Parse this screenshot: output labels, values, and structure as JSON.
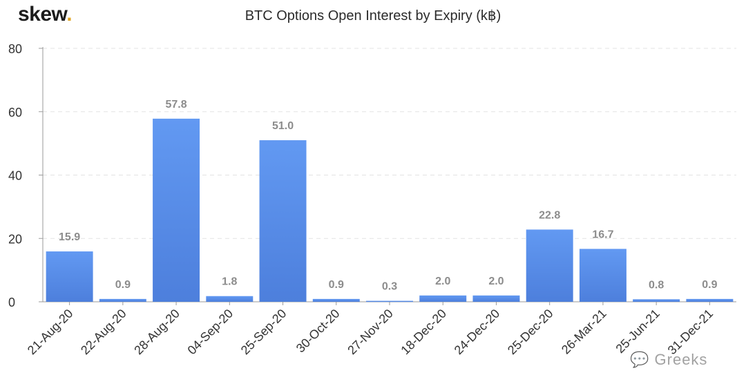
{
  "logo": {
    "text": "skew",
    "dot": "."
  },
  "watermark": "Greeks",
  "chart_data": {
    "type": "bar",
    "title": "BTC Options Open Interest by Expiry (k฿)",
    "xlabel": "",
    "ylabel": "",
    "categories": [
      "21-Aug-20",
      "22-Aug-20",
      "28-Aug-20",
      "04-Sep-20",
      "25-Sep-20",
      "30-Oct-20",
      "27-Nov-20",
      "18-Dec-20",
      "24-Dec-20",
      "25-Dec-20",
      "26-Mar-21",
      "25-Jun-21",
      "31-Dec-21"
    ],
    "values": [
      15.9,
      0.9,
      57.8,
      1.8,
      51.0,
      0.9,
      0.3,
      2.0,
      2.0,
      22.8,
      16.7,
      0.8,
      0.9
    ],
    "value_labels": [
      "15.9",
      "0.9",
      "57.8",
      "1.8",
      "51.0",
      "0.9",
      "0.3",
      "2.0",
      "2.0",
      "22.8",
      "16.7",
      "0.8",
      "0.9"
    ],
    "ylim": [
      0,
      80
    ],
    "yticks": [
      0,
      20,
      40,
      60,
      80
    ],
    "grid": true,
    "legend": "none",
    "colors": {
      "bar_top": "#6299f2",
      "bar_bottom": "#4d7fdc",
      "label": "#8c8c8c",
      "grid": "#e3e3e3",
      "axis": "#9a9a9a"
    }
  }
}
